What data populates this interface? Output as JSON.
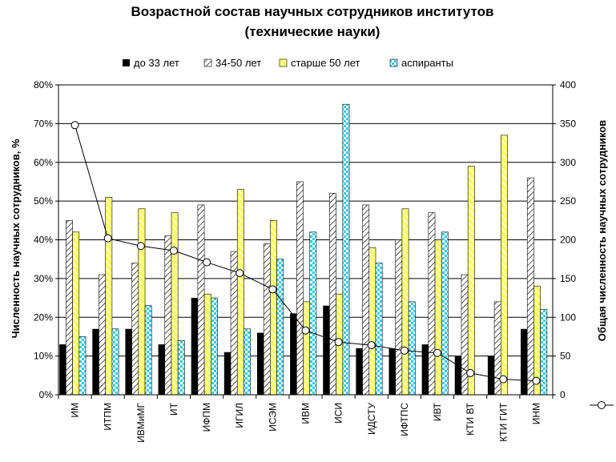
{
  "chart_data": {
    "type": "bar",
    "title_line1": "Возрастной состав научных сотрудников институтов",
    "title_line2": "(технические науки)",
    "ylabel": "Численность научных сотрудников, %",
    "y2label": "Общая численность научных сотрудников",
    "ylim": [
      0,
      80
    ],
    "y_ticks": [
      "0%",
      "10%",
      "20%",
      "30%",
      "40%",
      "50%",
      "60%",
      "70%",
      "80%"
    ],
    "y2lim": [
      0,
      400
    ],
    "y2_ticks": [
      "0",
      "50",
      "100",
      "150",
      "200",
      "250",
      "300",
      "350",
      "400"
    ],
    "grid": true,
    "legend_position": "top",
    "categories": [
      "ИМ",
      "ИТПМ",
      "ИВМиМГ",
      "ИТ",
      "ИФПМ",
      "ИГИЛ",
      "ИСЭМ",
      "ИВМ",
      "ИСИ",
      "ИДСТУ",
      "ИФТПС",
      "ИВТ",
      "КТИ ВТ",
      "КТИ ГИТ",
      "ИНМ"
    ],
    "series": [
      {
        "name": "до 33 лет",
        "color": "#000000",
        "pattern": "solid",
        "values": [
          13,
          17,
          17,
          13,
          25,
          11,
          16,
          21,
          23,
          12,
          12,
          13,
          10,
          10,
          17
        ]
      },
      {
        "name": "34-50 лет",
        "color": "#b0b0b0",
        "pattern": "hatch",
        "values": [
          45,
          31,
          34,
          41,
          49,
          37,
          39,
          55,
          52,
          49,
          40,
          47,
          31,
          24,
          56
        ]
      },
      {
        "name": "старше 50 лет",
        "color": "#ffff66",
        "pattern": "yellow-stripe",
        "values": [
          42,
          51,
          48,
          47,
          26,
          53,
          45,
          24,
          26,
          38,
          48,
          40,
          59,
          67,
          28
        ]
      },
      {
        "name": "аспиранты",
        "color": "#33ccee",
        "pattern": "cyan-check",
        "values": [
          15,
          17,
          23,
          14,
          25,
          17,
          35,
          42,
          75,
          34,
          24,
          42,
          0,
          0,
          22
        ]
      }
    ],
    "line_series": {
      "axis": "right",
      "values": [
        348,
        202,
        192,
        186,
        171,
        157,
        136,
        83,
        68,
        64,
        57,
        54,
        28,
        20,
        18
      ]
    }
  }
}
